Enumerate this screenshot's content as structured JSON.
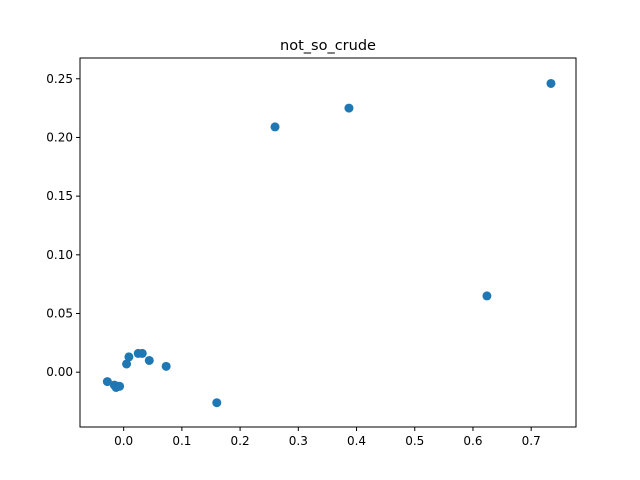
{
  "chart_data": {
    "type": "scatter",
    "title": "not_so_crude",
    "xlabel": "",
    "ylabel": "",
    "xlim": [
      -0.075,
      0.777
    ],
    "ylim": [
      -0.0467,
      0.2677
    ],
    "x_ticks": [
      0.0,
      0.1,
      0.2,
      0.3,
      0.4,
      0.5,
      0.6,
      0.7
    ],
    "x_tick_labels": [
      "0.0",
      "0.1",
      "0.2",
      "0.3",
      "0.4",
      "0.5",
      "0.6",
      "0.7"
    ],
    "y_ticks": [
      0.0,
      0.05,
      0.1,
      0.15,
      0.2,
      0.25
    ],
    "y_tick_labels": [
      "0.00",
      "0.05",
      "0.10",
      "0.15",
      "0.20",
      "0.25"
    ],
    "grid": false,
    "legend": "none",
    "marker_color": "#1f77b4",
    "series": [
      {
        "points": [
          {
            "x": -0.028,
            "y": -0.008
          },
          {
            "x": -0.016,
            "y": -0.011
          },
          {
            "x": -0.013,
            "y": -0.013
          },
          {
            "x": -0.01,
            "y": -0.012
          },
          {
            "x": -0.007,
            "y": -0.012
          },
          {
            "x": 0.005,
            "y": 0.007
          },
          {
            "x": 0.009,
            "y": 0.013
          },
          {
            "x": 0.025,
            "y": 0.016
          },
          {
            "x": 0.032,
            "y": 0.016
          },
          {
            "x": 0.044,
            "y": 0.01
          },
          {
            "x": 0.073,
            "y": 0.005
          },
          {
            "x": 0.16,
            "y": -0.026
          },
          {
            "x": 0.26,
            "y": 0.209
          },
          {
            "x": 0.387,
            "y": 0.225
          },
          {
            "x": 0.624,
            "y": 0.065
          },
          {
            "x": 0.734,
            "y": 0.246
          }
        ]
      }
    ]
  }
}
